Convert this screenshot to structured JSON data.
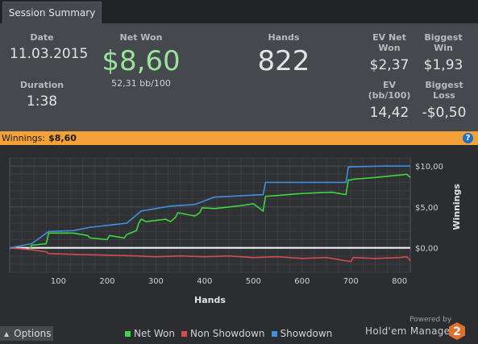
{
  "tab": {
    "label": "Session Summary"
  },
  "summary": {
    "date_label": "Date",
    "date": "11.03.2015",
    "duration_label": "Duration",
    "duration": "1:38",
    "net_won_label": "Net Won",
    "net_won": "$8,60",
    "bb_per_100": "52,31 bb/100",
    "hands_label": "Hands",
    "hands": "822",
    "ev_net_won_label": "EV Net Won",
    "ev_net_won": "$2,37",
    "biggest_win_label": "Biggest Win",
    "biggest_win": "$1,93",
    "ev_bb_label": "EV (bb/100)",
    "ev_bb": "14,42",
    "biggest_loss_label": "Biggest Loss",
    "biggest_loss": "-$0,50"
  },
  "banner": {
    "label": "Winnings:",
    "value": "$8,60",
    "help_glyph": "?"
  },
  "colors": {
    "net_won": "#3fd63f",
    "non_showdown": "#d64b4b",
    "showdown": "#3f8fe0",
    "banner": "#f3a23a",
    "net_won_big": "#9be29b"
  },
  "chart_data": {
    "type": "line",
    "xlabel": "Hands",
    "ylabel": "Winnings",
    "xlim": [
      0,
      822
    ],
    "ylim": [
      -3,
      11
    ],
    "x_ticks": [
      100,
      200,
      300,
      400,
      500,
      600,
      700,
      800
    ],
    "x_tick_labels": [
      "100",
      "200",
      "300",
      "400",
      "500",
      "600",
      "700",
      "800"
    ],
    "y_ticks": [
      10,
      5,
      0
    ],
    "y_tick_labels": [
      "$10,00",
      "$5,00",
      "$0,00"
    ],
    "grid": true,
    "series": [
      {
        "name": "Net Won",
        "x": [
          0,
          40,
          45,
          75,
          80,
          130,
          150,
          160,
          165,
          200,
          205,
          235,
          240,
          260,
          265,
          270,
          280,
          320,
          330,
          340,
          345,
          370,
          380,
          390,
          395,
          420,
          450,
          480,
          500,
          520,
          525,
          550,
          590,
          620,
          660,
          690,
          695,
          700,
          705,
          750,
          800,
          815,
          822
        ],
        "y": [
          0,
          -0.2,
          0.3,
          0.5,
          1.8,
          1.8,
          1.6,
          1.5,
          1.2,
          1.0,
          1.5,
          1.2,
          1.6,
          2.1,
          3.0,
          3.5,
          3.2,
          3.5,
          3.2,
          3.7,
          4.3,
          4.0,
          3.9,
          4.3,
          4.9,
          4.8,
          5.0,
          5.2,
          5.4,
          4.5,
          6.3,
          6.4,
          6.6,
          6.7,
          6.8,
          6.5,
          8.3,
          8.3,
          8.4,
          8.6,
          8.9,
          9.0,
          8.6
        ]
      },
      {
        "name": "Non Showdown",
        "x": [
          0,
          40,
          75,
          80,
          130,
          200,
          260,
          300,
          350,
          400,
          450,
          500,
          550,
          600,
          650,
          700,
          705,
          750,
          800,
          815,
          822
        ],
        "y": [
          0,
          -0.2,
          -0.5,
          -0.7,
          -0.8,
          -0.9,
          -1.0,
          -1.1,
          -1.0,
          -1.1,
          -1.0,
          -1.2,
          -1.1,
          -1.3,
          -1.2,
          -1.7,
          -1.2,
          -1.3,
          -1.2,
          -1.1,
          -1.6
        ]
      },
      {
        "name": "Showdown",
        "x": [
          0,
          45,
          80,
          130,
          165,
          240,
          270,
          330,
          380,
          420,
          520,
          525,
          640,
          690,
          695,
          770,
          822
        ],
        "y": [
          0,
          0.5,
          2.0,
          2.1,
          2.5,
          3.0,
          4.5,
          5.1,
          5.3,
          6.2,
          6.5,
          8.0,
          8.0,
          8.0,
          9.9,
          10.0,
          10.0
        ]
      }
    ],
    "zero_line": 0
  },
  "bottom": {
    "options_label": "Options",
    "legend": [
      "Net Won",
      "Non Showdown",
      "Showdown"
    ],
    "powered_by": "Powered by",
    "brand": "Hold'em Manager",
    "brand_num": "2"
  }
}
